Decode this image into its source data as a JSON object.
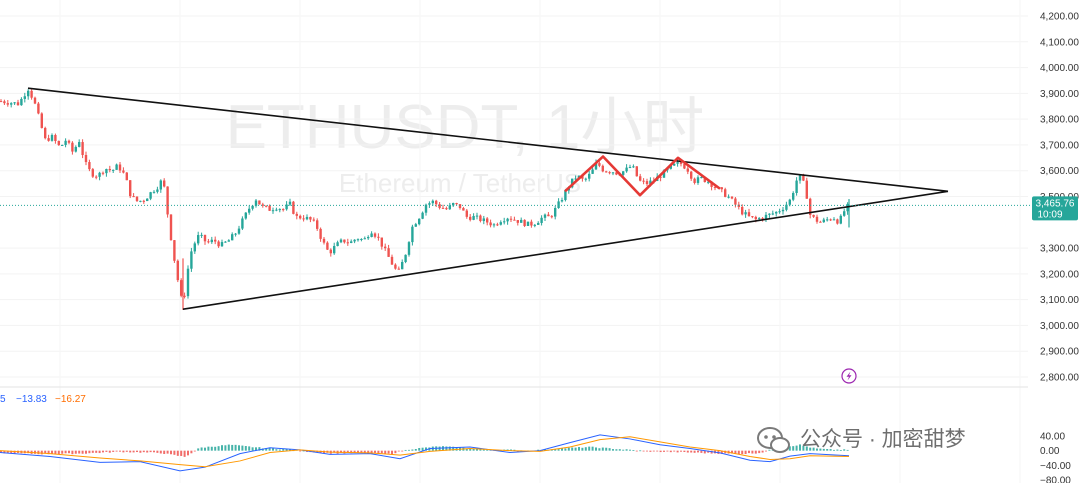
{
  "watermark": {
    "symbol": "ETHUSDT, 1小时",
    "description": "Ethereum / TetherUS"
  },
  "price_tag": {
    "price": "3,465.76",
    "countdown": "10:09",
    "color": "#26a69a"
  },
  "macd_legend": {
    "first": "5",
    "macd": "−13.83",
    "signal": "−16.27"
  },
  "brand_watermark": "公众号 · 加密甜梦",
  "chart_data": [
    {
      "type": "candlestick",
      "name": "ETHUSDT 1h",
      "y_ticks": [
        "4,200.00",
        "4,100.00",
        "4,000.00",
        "3,900.00",
        "3,800.00",
        "3,700.00",
        "3,600.00",
        "3,500.00",
        "3,300.00",
        "3,200.00",
        "3,100.00",
        "3,000.00",
        "2,900.00",
        "2,800.00"
      ],
      "ylim": [
        2770,
        4230
      ],
      "up_color": "#26a69a",
      "down_color": "#ef5350",
      "last_price": 3465.76,
      "path_points": [
        [
          0,
          3870
        ],
        [
          18,
          3860
        ],
        [
          22,
          3880
        ],
        [
          28,
          3920
        ],
        [
          34,
          3870
        ],
        [
          40,
          3790
        ],
        [
          45,
          3720
        ],
        [
          52,
          3730
        ],
        [
          60,
          3690
        ],
        [
          66,
          3720
        ],
        [
          73,
          3670
        ],
        [
          79,
          3720
        ],
        [
          85,
          3630
        ],
        [
          91,
          3590
        ],
        [
          98,
          3580
        ],
        [
          105,
          3610
        ],
        [
          112,
          3600
        ],
        [
          118,
          3620
        ],
        [
          125,
          3580
        ],
        [
          131,
          3500
        ],
        [
          138,
          3480
        ],
        [
          145,
          3490
        ],
        [
          152,
          3520
        ],
        [
          158,
          3540
        ],
        [
          163,
          3570
        ],
        [
          167,
          3450
        ],
        [
          171,
          3340
        ],
        [
          175,
          3240
        ],
        [
          179,
          3150
        ],
        [
          183,
          3070
        ],
        [
          187,
          3200
        ],
        [
          192,
          3300
        ],
        [
          199,
          3350
        ],
        [
          207,
          3320
        ],
        [
          214,
          3330
        ],
        [
          221,
          3310
        ],
        [
          229,
          3330
        ],
        [
          236,
          3360
        ],
        [
          243,
          3410
        ],
        [
          250,
          3460
        ],
        [
          256,
          3490
        ],
        [
          262,
          3460
        ],
        [
          270,
          3450
        ],
        [
          276,
          3460
        ],
        [
          283,
          3450
        ],
        [
          290,
          3470
        ],
        [
          296,
          3420
        ],
        [
          303,
          3420
        ],
        [
          310,
          3410
        ],
        [
          316,
          3390
        ],
        [
          322,
          3330
        ],
        [
          329,
          3280
        ],
        [
          336,
          3310
        ],
        [
          343,
          3330
        ],
        [
          350,
          3320
        ],
        [
          357,
          3340
        ],
        [
          364,
          3330
        ],
        [
          371,
          3370
        ],
        [
          378,
          3340
        ],
        [
          385,
          3290
        ],
        [
          392,
          3240
        ],
        [
          398,
          3200
        ],
        [
          405,
          3270
        ],
        [
          412,
          3380
        ],
        [
          419,
          3420
        ],
        [
          426,
          3470
        ],
        [
          433,
          3480
        ],
        [
          440,
          3460
        ],
        [
          447,
          3450
        ],
        [
          453,
          3470
        ],
        [
          460,
          3460
        ],
        [
          467,
          3420
        ],
        [
          474,
          3420
        ],
        [
          481,
          3410
        ],
        [
          488,
          3400
        ],
        [
          494,
          3390
        ],
        [
          501,
          3410
        ],
        [
          508,
          3420
        ],
        [
          515,
          3410
        ],
        [
          522,
          3400
        ],
        [
          529,
          3390
        ],
        [
          536,
          3400
        ],
        [
          543,
          3420
        ],
        [
          550,
          3420
        ],
        [
          557,
          3460
        ],
        [
          563,
          3500
        ],
        [
          570,
          3550
        ],
        [
          577,
          3580
        ],
        [
          584,
          3560
        ],
        [
          591,
          3590
        ],
        [
          597,
          3630
        ],
        [
          604,
          3600
        ],
        [
          611,
          3600
        ],
        [
          618,
          3590
        ],
        [
          625,
          3600
        ],
        [
          632,
          3620
        ],
        [
          639,
          3560
        ],
        [
          646,
          3550
        ],
        [
          653,
          3560
        ],
        [
          660,
          3580
        ],
        [
          667,
          3600
        ],
        [
          674,
          3620
        ],
        [
          680,
          3630
        ],
        [
          687,
          3610
        ],
        [
          694,
          3560
        ],
        [
          701,
          3570
        ],
        [
          708,
          3560
        ],
        [
          714,
          3540
        ],
        [
          721,
          3520
        ],
        [
          728,
          3500
        ],
        [
          735,
          3470
        ],
        [
          742,
          3440
        ],
        [
          749,
          3420
        ],
        [
          756,
          3410
        ],
        [
          763,
          3420
        ],
        [
          770,
          3430
        ],
        [
          777,
          3440
        ],
        [
          784,
          3460
        ],
        [
          791,
          3490
        ],
        [
          796,
          3560
        ],
        [
          801,
          3580
        ],
        [
          806,
          3520
        ],
        [
          810,
          3430
        ],
        [
          815,
          3410
        ],
        [
          821,
          3400
        ],
        [
          827,
          3410
        ],
        [
          833,
          3420
        ],
        [
          839,
          3400
        ],
        [
          845,
          3450
        ],
        [
          849,
          3466
        ]
      ]
    },
    {
      "type": "line",
      "name": "pattern lines",
      "segments": [
        {
          "label": "resistance",
          "from": [
            28,
            3920
          ],
          "to": [
            948,
            3520
          ]
        },
        {
          "label": "support",
          "from": [
            183,
            3063
          ],
          "to": [
            948,
            3520
          ]
        }
      ],
      "pattern_segments": [
        [
          565,
          3520
        ],
        [
          603,
          3655
        ],
        [
          640,
          3505
        ],
        [
          678,
          3650
        ],
        [
          720,
          3530
        ]
      ]
    },
    {
      "type": "bar",
      "name": "MACD",
      "y_ticks": [
        "40.00",
        "0.00",
        "−40.00",
        "−80.00"
      ],
      "ylim": [
        -85,
        50
      ],
      "histogram_points": [
        [
          0,
          -6
        ],
        [
          40,
          -9
        ],
        [
          80,
          -8
        ],
        [
          120,
          -3
        ],
        [
          160,
          -6
        ],
        [
          185,
          -17
        ],
        [
          200,
          8
        ],
        [
          230,
          16
        ],
        [
          260,
          8
        ],
        [
          290,
          3
        ],
        [
          310,
          -3
        ],
        [
          330,
          -7
        ],
        [
          360,
          -6
        ],
        [
          390,
          -9
        ],
        [
          410,
          4
        ],
        [
          440,
          12
        ],
        [
          470,
          6
        ],
        [
          500,
          3
        ],
        [
          530,
          0
        ],
        [
          560,
          6
        ],
        [
          590,
          10
        ],
        [
          620,
          4
        ],
        [
          650,
          -2
        ],
        [
          680,
          -4
        ],
        [
          710,
          -7
        ],
        [
          740,
          -9
        ],
        [
          760,
          -6
        ],
        [
          780,
          9
        ],
        [
          800,
          16
        ],
        [
          815,
          6
        ],
        [
          830,
          3
        ],
        [
          849,
          2
        ]
      ],
      "macd_points": [
        [
          0,
          -5
        ],
        [
          50,
          -16
        ],
        [
          100,
          -32
        ],
        [
          140,
          -30
        ],
        [
          180,
          -55
        ],
        [
          205,
          -45
        ],
        [
          240,
          -8
        ],
        [
          270,
          8
        ],
        [
          300,
          2
        ],
        [
          330,
          -10
        ],
        [
          370,
          -8
        ],
        [
          400,
          -22
        ],
        [
          430,
          6
        ],
        [
          470,
          10
        ],
        [
          510,
          -5
        ],
        [
          540,
          0
        ],
        [
          570,
          22
        ],
        [
          600,
          43
        ],
        [
          630,
          32
        ],
        [
          660,
          16
        ],
        [
          690,
          6
        ],
        [
          720,
          -6
        ],
        [
          750,
          -26
        ],
        [
          770,
          -30
        ],
        [
          790,
          -15
        ],
        [
          810,
          -8
        ],
        [
          849,
          -14
        ]
      ],
      "signal_points": [
        [
          0,
          0
        ],
        [
          50,
          -8
        ],
        [
          100,
          -20
        ],
        [
          140,
          -28
        ],
        [
          180,
          -38
        ],
        [
          205,
          -44
        ],
        [
          240,
          -28
        ],
        [
          270,
          -5
        ],
        [
          300,
          2
        ],
        [
          330,
          -4
        ],
        [
          370,
          -6
        ],
        [
          400,
          -12
        ],
        [
          430,
          -2
        ],
        [
          470,
          6
        ],
        [
          510,
          0
        ],
        [
          540,
          -2
        ],
        [
          570,
          10
        ],
        [
          600,
          30
        ],
        [
          630,
          38
        ],
        [
          660,
          24
        ],
        [
          690,
          10
        ],
        [
          720,
          0
        ],
        [
          750,
          -16
        ],
        [
          770,
          -24
        ],
        [
          790,
          -22
        ],
        [
          810,
          -14
        ],
        [
          849,
          -16
        ]
      ]
    }
  ]
}
